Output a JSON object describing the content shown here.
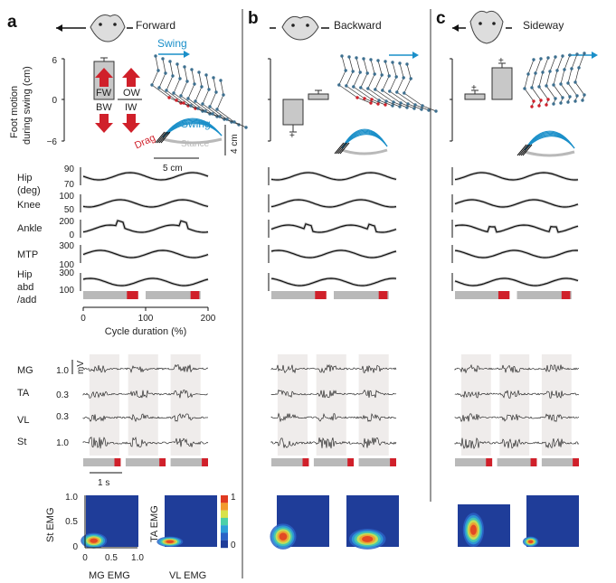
{
  "panels": [
    {
      "letter": "a",
      "direction": "Forward"
    },
    {
      "letter": "b",
      "direction": "Backward"
    },
    {
      "letter": "c",
      "direction": "Sideway"
    }
  ],
  "foot_motion": {
    "ylabel_line1": "Foot motion",
    "ylabel_line2": "during swing (cm)",
    "yticks": [
      "6",
      "0",
      "−6"
    ],
    "bar_labels": {
      "fw": "FW",
      "ow": "OW",
      "bw": "BW",
      "iw": "IW"
    },
    "swing_label": "Swing",
    "swing_label2": "Swing",
    "drag_label": "Drag",
    "stance_label": "Stance",
    "scale_vertical": "4 cm",
    "scale_horizontal": "5 cm",
    "plus": "+"
  },
  "kinematics": {
    "rows": [
      {
        "label": "Hip",
        "label2": "(deg)",
        "ticks": [
          "90",
          "70"
        ]
      },
      {
        "label": "Knee",
        "label2": "",
        "ticks": [
          "100",
          "50"
        ]
      },
      {
        "label": "Ankle",
        "label2": "",
        "ticks": [
          "200",
          "0"
        ]
      },
      {
        "label": "MTP",
        "label2": "",
        "ticks": [
          "300",
          "100"
        ]
      },
      {
        "label": "Hip",
        "label2": "abd",
        "label3": "/add",
        "ticks": [
          "300",
          "100"
        ]
      }
    ],
    "xticks": [
      "0",
      "100",
      "200"
    ],
    "xlabel": "Cycle duration (%)"
  },
  "emg": {
    "rows": [
      {
        "label": "MG",
        "scale": "1.0"
      },
      {
        "label": "TA",
        "scale": "0.3"
      },
      {
        "label": "VL",
        "scale": "0.3"
      },
      {
        "label": "St",
        "scale": "1.0"
      }
    ],
    "unit": "mV",
    "time_scale": "1 s"
  },
  "heatmaps": {
    "colorbar_max": "1",
    "colorbar_min": "0",
    "yticks": [
      "1.0",
      "0.5",
      "0"
    ],
    "xticks": [
      "0",
      "0.5",
      "1.0"
    ],
    "ylabel1": "St EMG",
    "ylabel2": "TA EMG",
    "xlabel1": "MG EMG",
    "xlabel2": "VL EMG"
  },
  "colors": {
    "swing": "#1a8fc9",
    "drag": "#d0202a",
    "stance": "#b9b9b9",
    "bar": "#c8c8c8",
    "trace": "#111111"
  }
}
